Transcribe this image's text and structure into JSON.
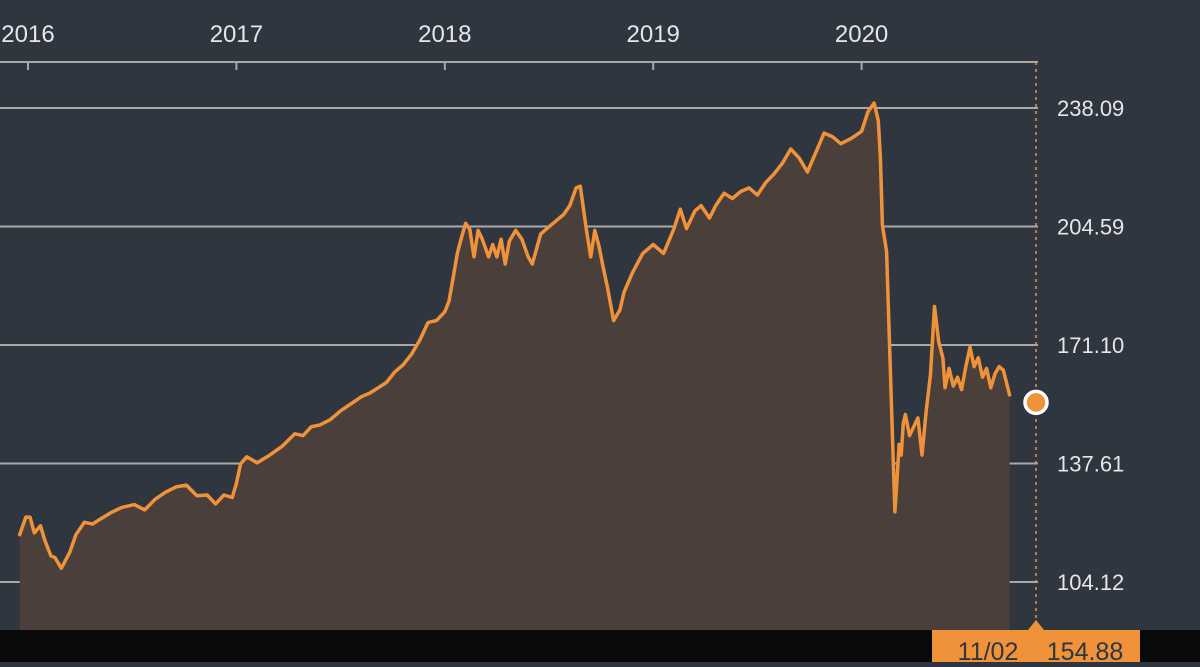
{
  "colors": {
    "background": "#2f3640",
    "line": "#f0923a",
    "area_fill": "#4a3f3b",
    "grid": "#a9a9a9",
    "text": "#e6e6e6",
    "footer_bar": "#0a0a0a",
    "badge_bg": "#f0923a",
    "badge_text": "#2f3640",
    "marker_fill": "#f0923a",
    "marker_stroke": "#ffffff"
  },
  "chart_data": {
    "type": "area",
    "x_axis": {
      "position": "top",
      "tick_labels": [
        "2016",
        "2017",
        "2018",
        "2019",
        "2020"
      ]
    },
    "y_axis": {
      "position": "right",
      "tick_labels": [
        "238.09",
        "204.59",
        "171.10",
        "137.61",
        "104.12"
      ],
      "ylim": [
        91,
        251
      ]
    },
    "grid": true,
    "crosshair": {
      "label_date": "11/02",
      "label_value": "154.88"
    },
    "series": [
      {
        "values": [
          [
            2015.96,
            117.5
          ],
          [
            2015.99,
            122.5
          ],
          [
            2016.01,
            122.4
          ],
          [
            2016.03,
            118.0
          ],
          [
            2016.06,
            120.0
          ],
          [
            2016.08,
            116.0
          ],
          [
            2016.11,
            111.5
          ],
          [
            2016.13,
            111.0
          ],
          [
            2016.16,
            108.0
          ],
          [
            2016.2,
            112.5
          ],
          [
            2016.23,
            117.5
          ],
          [
            2016.27,
            121.0
          ],
          [
            2016.31,
            120.5
          ],
          [
            2016.35,
            122.0
          ],
          [
            2016.4,
            123.8
          ],
          [
            2016.45,
            125.2
          ],
          [
            2016.51,
            126.0
          ],
          [
            2016.56,
            124.5
          ],
          [
            2016.61,
            127.5
          ],
          [
            2016.66,
            129.5
          ],
          [
            2016.71,
            131.0
          ],
          [
            2016.76,
            131.5
          ],
          [
            2016.81,
            128.5
          ],
          [
            2016.86,
            128.7
          ],
          [
            2016.9,
            126.2
          ],
          [
            2016.94,
            128.7
          ],
          [
            2016.98,
            128.0
          ],
          [
            2017.0,
            132.0
          ],
          [
            2017.02,
            137.5
          ],
          [
            2017.05,
            139.5
          ],
          [
            2017.1,
            137.8
          ],
          [
            2017.16,
            140.0
          ],
          [
            2017.22,
            142.5
          ],
          [
            2017.28,
            146.0
          ],
          [
            2017.32,
            145.5
          ],
          [
            2017.36,
            148.0
          ],
          [
            2017.4,
            148.5
          ],
          [
            2017.45,
            150.0
          ],
          [
            2017.5,
            152.5
          ],
          [
            2017.55,
            154.5
          ],
          [
            2017.6,
            156.5
          ],
          [
            2017.64,
            157.5
          ],
          [
            2017.68,
            159.0
          ],
          [
            2017.72,
            160.5
          ],
          [
            2017.76,
            163.5
          ],
          [
            2017.8,
            165.5
          ],
          [
            2017.84,
            168.5
          ],
          [
            2017.88,
            172.5
          ],
          [
            2017.92,
            177.5
          ],
          [
            2017.96,
            178.0
          ],
          [
            2018.0,
            180.5
          ],
          [
            2018.02,
            183.5
          ],
          [
            2018.04,
            190.0
          ],
          [
            2018.06,
            197.0
          ],
          [
            2018.08,
            201.5
          ],
          [
            2018.1,
            205.5
          ],
          [
            2018.12,
            203.8
          ],
          [
            2018.14,
            196.0
          ],
          [
            2018.16,
            203.5
          ],
          [
            2018.18,
            201.0
          ],
          [
            2018.21,
            196.0
          ],
          [
            2018.23,
            199.5
          ],
          [
            2018.25,
            196.0
          ],
          [
            2018.27,
            201.0
          ],
          [
            2018.29,
            194.0
          ],
          [
            2018.31,
            200.5
          ],
          [
            2018.34,
            203.5
          ],
          [
            2018.37,
            201.0
          ],
          [
            2018.4,
            196.0
          ],
          [
            2018.42,
            194.0
          ],
          [
            2018.46,
            202.5
          ],
          [
            2018.5,
            204.5
          ],
          [
            2018.54,
            206.5
          ],
          [
            2018.57,
            208.0
          ],
          [
            2018.6,
            210.5
          ],
          [
            2018.63,
            215.5
          ],
          [
            2018.65,
            216.0
          ],
          [
            2018.68,
            203.5
          ],
          [
            2018.7,
            196.0
          ],
          [
            2018.72,
            203.5
          ],
          [
            2018.74,
            199.0
          ],
          [
            2018.76,
            193.0
          ],
          [
            2018.78,
            187.5
          ],
          [
            2018.81,
            178.0
          ],
          [
            2018.84,
            181.0
          ],
          [
            2018.86,
            186.0
          ],
          [
            2018.9,
            191.5
          ],
          [
            2018.95,
            197.0
          ],
          [
            2019.0,
            199.5
          ],
          [
            2019.05,
            197.0
          ],
          [
            2019.1,
            204.0
          ],
          [
            2019.13,
            209.5
          ],
          [
            2019.16,
            204.0
          ],
          [
            2019.2,
            209.0
          ],
          [
            2019.23,
            210.5
          ],
          [
            2019.27,
            207.0
          ],
          [
            2019.3,
            210.5
          ],
          [
            2019.34,
            214.0
          ],
          [
            2019.38,
            212.5
          ],
          [
            2019.42,
            214.5
          ],
          [
            2019.46,
            215.5
          ],
          [
            2019.5,
            213.5
          ],
          [
            2019.54,
            217.0
          ],
          [
            2019.58,
            219.5
          ],
          [
            2019.62,
            222.5
          ],
          [
            2019.66,
            226.5
          ],
          [
            2019.7,
            224.0
          ],
          [
            2019.74,
            220.0
          ],
          [
            2019.78,
            225.5
          ],
          [
            2019.82,
            231.0
          ],
          [
            2019.86,
            230.0
          ],
          [
            2019.9,
            228.0
          ],
          [
            2019.95,
            229.5
          ],
          [
            2020.0,
            231.5
          ],
          [
            2020.03,
            237.0
          ],
          [
            2020.06,
            239.5
          ],
          [
            2020.08,
            234.5
          ],
          [
            2020.09,
            224.0
          ],
          [
            2020.1,
            205.0
          ],
          [
            2020.12,
            197.5
          ],
          [
            2020.14,
            160.0
          ],
          [
            2020.15,
            141.5
          ],
          [
            2020.16,
            124.0
          ],
          [
            2020.17,
            133.0
          ],
          [
            2020.18,
            143.0
          ],
          [
            2020.19,
            140.0
          ],
          [
            2020.2,
            149.0
          ],
          [
            2020.21,
            151.5
          ],
          [
            2020.23,
            145.5
          ],
          [
            2020.25,
            148.0
          ],
          [
            2020.27,
            150.5
          ],
          [
            2020.29,
            140.0
          ],
          [
            2020.31,
            152.5
          ],
          [
            2020.33,
            162.5
          ],
          [
            2020.35,
            182.0
          ],
          [
            2020.37,
            172.0
          ],
          [
            2020.39,
            167.5
          ],
          [
            2020.4,
            159.0
          ],
          [
            2020.42,
            164.5
          ],
          [
            2020.44,
            159.5
          ],
          [
            2020.46,
            162.0
          ],
          [
            2020.48,
            158.5
          ],
          [
            2020.5,
            165.0
          ],
          [
            2020.52,
            170.5
          ],
          [
            2020.54,
            165.0
          ],
          [
            2020.56,
            167.5
          ],
          [
            2020.58,
            162.0
          ],
          [
            2020.6,
            164.5
          ],
          [
            2020.62,
            159.0
          ],
          [
            2020.64,
            163.0
          ],
          [
            2020.66,
            165.0
          ],
          [
            2020.68,
            164.0
          ],
          [
            2020.71,
            157.0
          ]
        ]
      }
    ]
  }
}
